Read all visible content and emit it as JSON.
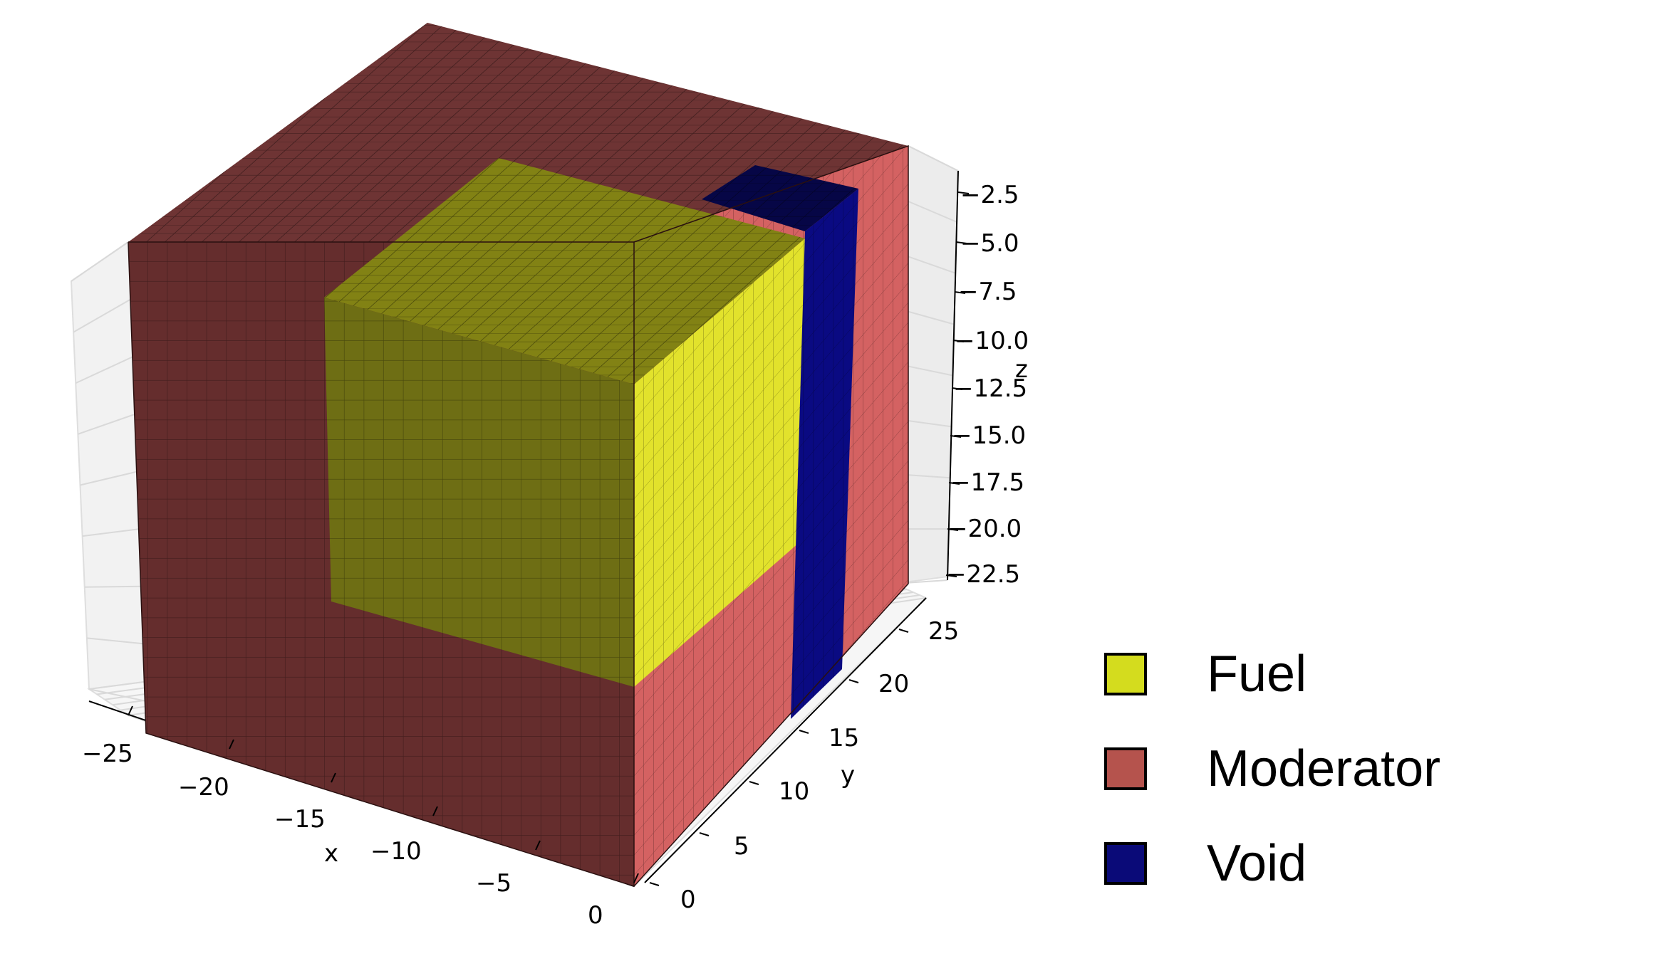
{
  "axes": {
    "x": {
      "label": "x",
      "ticks": [
        "−25",
        "−20",
        "−15",
        "−10",
        "−5",
        "0"
      ]
    },
    "y": {
      "label": "y",
      "ticks": [
        "0",
        "5",
        "10",
        "15",
        "20",
        "25"
      ]
    },
    "z": {
      "label": "z",
      "ticks": [
        "−2.5",
        "−5.0",
        "−7.5",
        "−10.0",
        "−12.5",
        "−15.0",
        "−17.5",
        "−20.0",
        "−22.5"
      ]
    }
  },
  "legend": {
    "items": [
      {
        "label": "Fuel",
        "color": "#d4dc1e"
      },
      {
        "label": "Moderator",
        "color": "#b5534d"
      },
      {
        "label": "Void",
        "color": "#0a0a78"
      }
    ]
  },
  "colors": {
    "moderator_top": "#6e3434",
    "moderator_front": "#652d2d",
    "moderator_side": "#d46262",
    "fuel_top": "#828214",
    "fuel_front": "#6e6e14",
    "fuel_side": "#e2e22c",
    "void_top": "#060646",
    "void_side": "#0a0a82"
  }
}
